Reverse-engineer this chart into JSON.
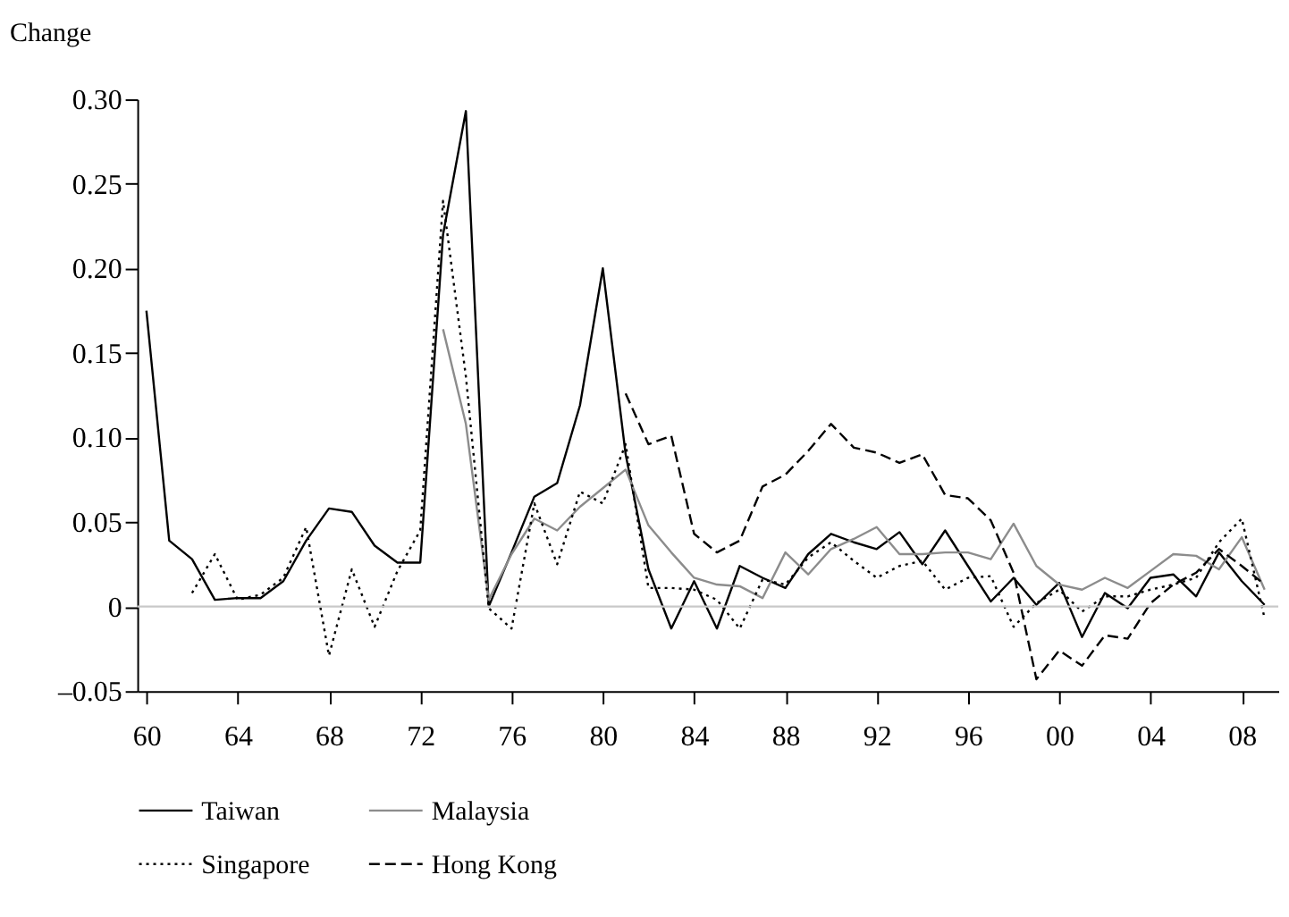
{
  "chart_data": {
    "type": "line",
    "ylabel": "Change",
    "x": [
      1960,
      1961,
      1962,
      1963,
      1964,
      1965,
      1966,
      1967,
      1968,
      1969,
      1970,
      1971,
      1972,
      1973,
      1974,
      1975,
      1976,
      1977,
      1978,
      1979,
      1980,
      1981,
      1982,
      1983,
      1984,
      1985,
      1986,
      1987,
      1988,
      1989,
      1990,
      1991,
      1992,
      1993,
      1994,
      1995,
      1996,
      1997,
      1998,
      1999,
      2000,
      2001,
      2002,
      2003,
      2004,
      2005,
      2006,
      2007,
      2008,
      2009
    ],
    "xlim": [
      1959.6,
      2009.6
    ],
    "xticks": [
      {
        "value": 1960,
        "label": "60"
      },
      {
        "value": 1964,
        "label": "64"
      },
      {
        "value": 1968,
        "label": "68"
      },
      {
        "value": 1972,
        "label": "72"
      },
      {
        "value": 1976,
        "label": "76"
      },
      {
        "value": 1980,
        "label": "80"
      },
      {
        "value": 1984,
        "label": "84"
      },
      {
        "value": 1988,
        "label": "88"
      },
      {
        "value": 1992,
        "label": "92"
      },
      {
        "value": 1996,
        "label": "96"
      },
      {
        "value": 2000,
        "label": "00"
      },
      {
        "value": 2004,
        "label": "04"
      },
      {
        "value": 2008,
        "label": "08"
      }
    ],
    "ylim": [
      -0.05,
      0.3
    ],
    "yticks": [
      {
        "value": -0.05,
        "label": "–0.05"
      },
      0,
      {
        "value": 0.05,
        "label": "0.05"
      },
      {
        "value": 0.1,
        "label": "0.10"
      },
      {
        "value": 0.15,
        "label": "0.15"
      },
      {
        "value": 0.2,
        "label": "0.20"
      },
      {
        "value": 0.25,
        "label": "0.25"
      },
      {
        "value": 0.3,
        "label": "0.30"
      }
    ],
    "grid": false,
    "legend": "bottom",
    "marker": "none",
    "ref_lines": [
      {
        "axis": "y",
        "value": 0,
        "color": "#c8c8c8"
      }
    ],
    "series": [
      {
        "name": "Taiwan",
        "color": "#000000",
        "line_style": "solid",
        "values": [
          0.175,
          0.039,
          0.028,
          0.004,
          0.005,
          0.005,
          0.015,
          0.039,
          0.058,
          0.056,
          0.036,
          0.026,
          0.026,
          0.22,
          0.293,
          0.0,
          0.032,
          0.065,
          0.073,
          0.119,
          0.2,
          0.09,
          0.022,
          -0.013,
          0.015,
          -0.013,
          0.024,
          0.017,
          0.011,
          0.031,
          0.043,
          0.038,
          0.034,
          0.044,
          0.025,
          0.045,
          0.024,
          0.003,
          0.017,
          0.001,
          0.014,
          -0.018,
          0.008,
          -0.001,
          0.017,
          0.019,
          0.006,
          0.032,
          0.015,
          0.001
        ]
      },
      {
        "name": "Malaysia",
        "color": "#8c8c8c",
        "line_style": "solid",
        "values": [
          null,
          null,
          null,
          null,
          null,
          null,
          null,
          null,
          null,
          null,
          null,
          null,
          null,
          0.164,
          0.108,
          0.004,
          0.031,
          0.052,
          0.045,
          0.059,
          0.07,
          0.081,
          0.048,
          0.032,
          0.017,
          0.013,
          0.012,
          0.005,
          0.032,
          0.019,
          0.034,
          0.04,
          0.047,
          0.031,
          0.031,
          0.032,
          0.032,
          0.028,
          0.049,
          0.024,
          0.013,
          0.01,
          0.017,
          0.011,
          0.021,
          0.031,
          0.03,
          0.022,
          0.041,
          0.01
        ]
      },
      {
        "name": "Singapore",
        "color": "#000000",
        "line_style": "dotted",
        "values": [
          null,
          null,
          0.008,
          0.031,
          0.004,
          0.007,
          0.017,
          0.047,
          -0.029,
          0.022,
          -0.012,
          0.021,
          0.045,
          0.24,
          0.136,
          -0.001,
          -0.013,
          0.061,
          0.025,
          0.068,
          0.061,
          0.096,
          0.011,
          0.011,
          0.01,
          0.004,
          -0.013,
          0.016,
          0.013,
          0.029,
          0.038,
          0.027,
          0.017,
          0.024,
          0.027,
          0.01,
          0.017,
          0.018,
          -0.012,
          0.002,
          0.01,
          -0.003,
          0.006,
          0.006,
          0.01,
          0.013,
          0.017,
          0.038,
          0.052,
          -0.007
        ]
      },
      {
        "name": "Hong Kong",
        "color": "#000000",
        "line_style": "dashed",
        "values": [
          null,
          null,
          null,
          null,
          null,
          null,
          null,
          null,
          null,
          null,
          null,
          null,
          null,
          null,
          null,
          null,
          null,
          null,
          null,
          null,
          null,
          0.126,
          0.096,
          0.101,
          0.043,
          0.032,
          0.039,
          0.071,
          0.078,
          0.092,
          0.108,
          0.094,
          0.091,
          0.085,
          0.09,
          0.066,
          0.064,
          0.051,
          0.02,
          -0.043,
          -0.026,
          -0.035,
          -0.017,
          -0.019,
          0.002,
          0.013,
          0.02,
          0.034,
          0.024,
          0.013
        ]
      }
    ]
  }
}
